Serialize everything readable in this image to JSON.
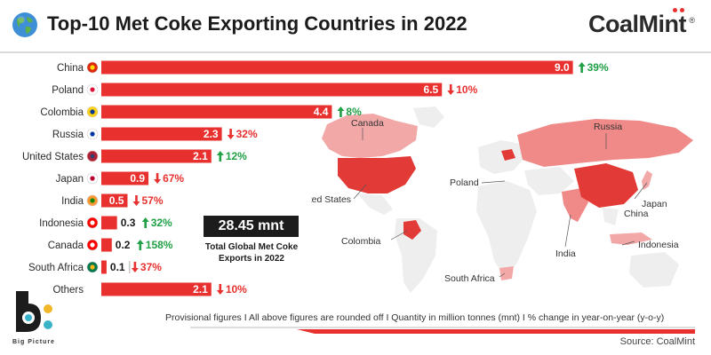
{
  "header": {
    "title": "Top-10 Met Coke Exporting Countries in 2022",
    "brand": "CoalMint",
    "brand_mark": "®"
  },
  "chart_data": {
    "type": "bar",
    "orientation": "horizontal",
    "title": "Top-10 Met Coke Exporting Countries in 2022",
    "categories": [
      "China",
      "Poland",
      "Colombia",
      "Russia",
      "United States",
      "Japan",
      "India",
      "Indonesia",
      "Canada",
      "South Africa",
      "Others"
    ],
    "values": [
      9.0,
      6.5,
      4.4,
      2.3,
      2.1,
      0.9,
      0.5,
      0.3,
      0.2,
      0.1,
      2.1
    ],
    "value_labels": [
      "9.0",
      "6.5",
      "4.4",
      "2.3",
      "2.1",
      "0.9",
      "0.5",
      "0.3",
      "0.2",
      "0.1",
      "2.1"
    ],
    "change_labels": [
      "39%",
      "10%",
      "8%",
      "32%",
      "12%",
      "67%",
      "57%",
      "32%",
      "158%",
      "37%",
      "10%"
    ],
    "change_direction": [
      "up",
      "down",
      "up",
      "down",
      "up",
      "down",
      "down",
      "up",
      "up",
      "down",
      "down"
    ],
    "xlim": [
      0,
      9.6
    ],
    "grid": false,
    "legend": "none",
    "colors": {
      "bar": "#e8312f",
      "up": "#21a045",
      "down": "#e8312f"
    }
  },
  "summary": {
    "total": "28.45 mnt",
    "caption_line1": "Total Global Met Coke",
    "caption_line2": "Exports in 2022"
  },
  "map": {
    "labels": {
      "canada": "Canada",
      "russia": "Russia",
      "united_states": "United States",
      "poland": "Poland",
      "japan": "Japan",
      "china": "China",
      "colombia": "Colombia",
      "indonesia": "Indonesia",
      "india": "India",
      "south_africa": "South Africa"
    }
  },
  "footer": {
    "note": "Provisional figures  I  All above figures are rounded off I  Quantity in million tonnes (mnt)  I  % change in year-on-year (y-o-y)",
    "source": "Source: CoalMint"
  },
  "logo": {
    "caption": "Big Picture"
  }
}
